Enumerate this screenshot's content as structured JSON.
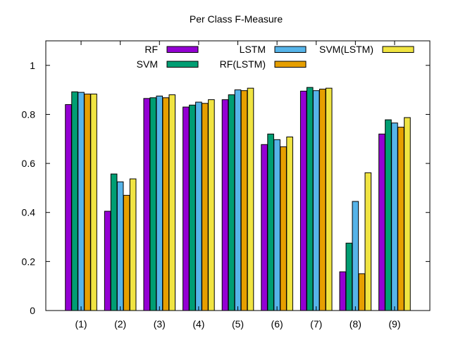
{
  "chart_data": {
    "type": "bar",
    "title": "Per Class F-Measure",
    "xlabel": "",
    "ylabel": "",
    "ylim": [
      0,
      1.1
    ],
    "yticks": [
      0,
      0.2,
      0.4,
      0.6,
      0.8,
      1
    ],
    "ytick_labels": [
      "0",
      "0.2",
      "0.4",
      "0.6",
      "0.8",
      "1"
    ],
    "categories": [
      "(1)",
      "(2)",
      "(3)",
      "(4)",
      "(5)",
      "(6)",
      "(7)",
      "(8)",
      "(9)"
    ],
    "legend_position": "top-right",
    "series": [
      {
        "name": "RF",
        "color": "#9400d3",
        "values": [
          0.84,
          0.405,
          0.865,
          0.83,
          0.86,
          0.677,
          0.895,
          0.158,
          0.72
        ]
      },
      {
        "name": "SVM",
        "color": "#009e73",
        "values": [
          0.892,
          0.557,
          0.868,
          0.838,
          0.88,
          0.72,
          0.91,
          0.275,
          0.778
        ]
      },
      {
        "name": "LSTM",
        "color": "#56b4e9",
        "values": [
          0.89,
          0.525,
          0.875,
          0.85,
          0.9,
          0.697,
          0.897,
          0.445,
          0.765
        ]
      },
      {
        "name": "RF(LSTM)",
        "color": "#e69f00",
        "values": [
          0.883,
          0.47,
          0.868,
          0.845,
          0.897,
          0.668,
          0.903,
          0.15,
          0.748
        ]
      },
      {
        "name": "SVM(LSTM)",
        "color": "#f0e442",
        "values": [
          0.883,
          0.537,
          0.88,
          0.86,
          0.907,
          0.708,
          0.907,
          0.562,
          0.787
        ]
      }
    ]
  }
}
